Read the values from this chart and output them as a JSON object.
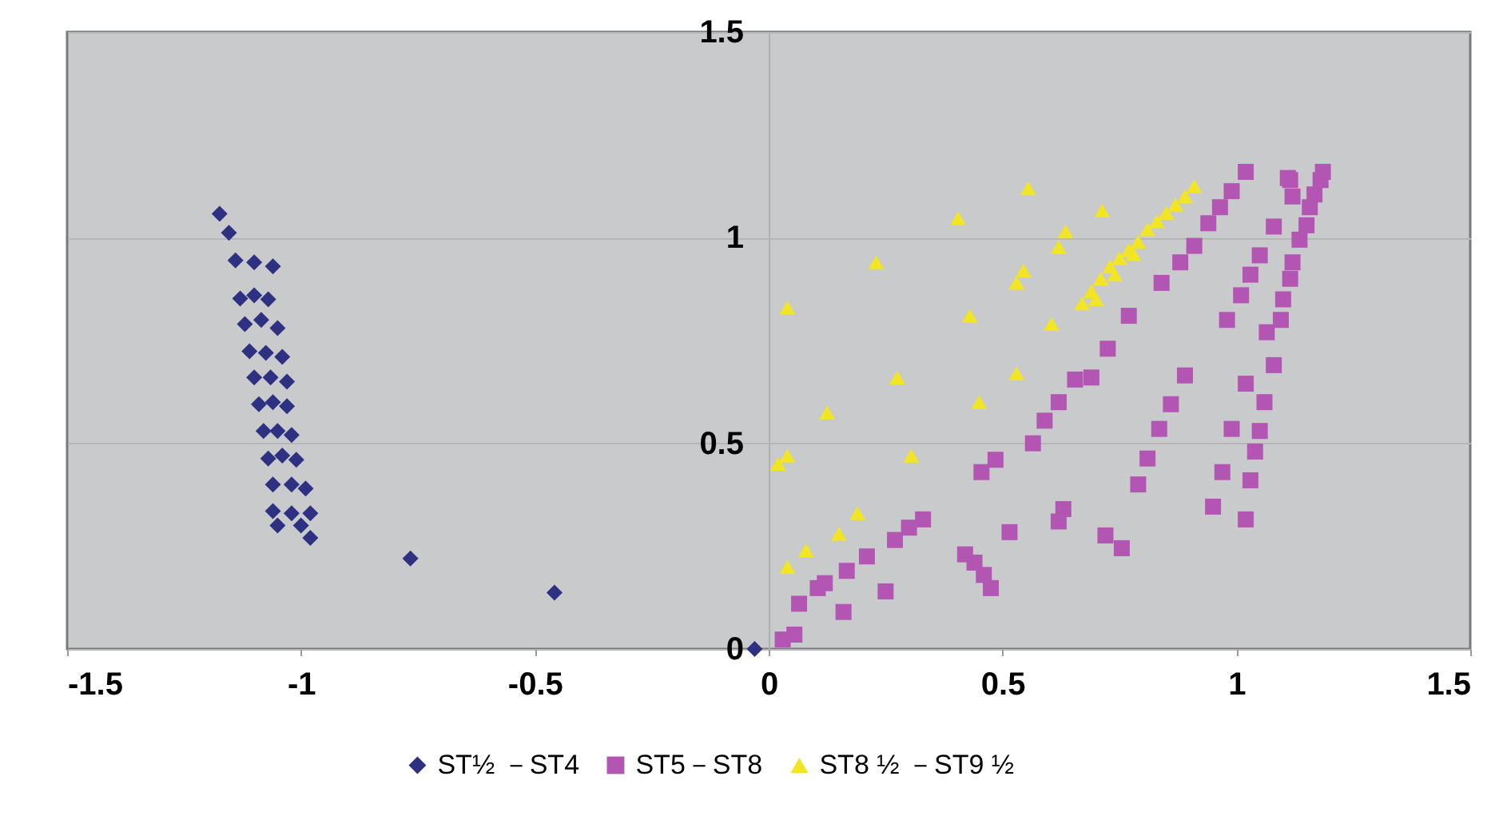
{
  "chart_data": {
    "type": "scatter",
    "grid": "y",
    "legend": "bottom",
    "xlim": [
      -1.5,
      1.5
    ],
    "ylim": [
      0,
      1.5
    ],
    "xticks": [
      -1.5,
      -1,
      -0.5,
      0,
      0.5,
      1,
      1.5
    ],
    "yticks": [
      0,
      0.5,
      1,
      1.5
    ],
    "series": [
      {
        "name": "ST½ －ST4",
        "color": "#2e3182",
        "marker": "diamond",
        "x": [
          -1.174,
          -1.154,
          -1.14,
          -1.1,
          -1.06,
          -1.13,
          -1.1,
          -1.07,
          -1.12,
          -1.085,
          -1.05,
          -1.11,
          -1.075,
          -1.04,
          -1.1,
          -1.065,
          -1.03,
          -1.09,
          -1.06,
          -1.03,
          -1.08,
          -1.05,
          -1.02,
          -1.07,
          -1.04,
          -1.01,
          -1.06,
          -1.02,
          -0.99,
          -1.06,
          -1.02,
          -0.98,
          -1.05,
          -1.0,
          -0.98,
          -0.766,
          -0.458,
          -0.03
        ],
        "values": [
          1.058,
          1.012,
          0.945,
          0.94,
          0.93,
          0.852,
          0.86,
          0.85,
          0.79,
          0.8,
          0.78,
          0.724,
          0.72,
          0.71,
          0.66,
          0.66,
          0.65,
          0.595,
          0.6,
          0.59,
          0.53,
          0.53,
          0.52,
          0.463,
          0.47,
          0.46,
          0.4,
          0.4,
          0.39,
          0.335,
          0.33,
          0.33,
          0.3,
          0.3,
          0.27,
          0.22,
          0.137,
          0.0
        ]
      },
      {
        "name": "ST5－ST8",
        "color": "#b356b3",
        "marker": "square",
        "x": [
          0.03,
          0.055,
          0.065,
          0.105,
          0.12,
          0.16,
          0.167,
          0.21,
          0.25,
          0.27,
          0.3,
          0.33,
          0.42,
          0.44,
          0.46,
          0.475,
          0.515,
          0.455,
          0.485,
          0.565,
          0.59,
          0.62,
          0.655,
          0.69,
          0.725,
          0.77,
          0.84,
          0.88,
          0.91,
          0.94,
          0.965,
          0.99,
          1.02,
          0.63,
          0.62,
          0.72,
          0.755,
          0.79,
          0.81,
          0.835,
          0.86,
          0.89,
          0.98,
          1.01,
          1.03,
          1.05,
          1.08,
          1.115,
          0.95,
          0.97,
          0.99,
          1.02,
          1.03,
          1.04,
          1.05,
          1.02,
          1.06,
          1.08,
          1.065,
          1.095,
          1.1,
          1.115,
          1.12,
          1.135,
          1.15,
          1.157,
          1.167,
          1.12,
          1.18,
          1.185,
          1.11
        ],
        "values": [
          0.023,
          0.035,
          0.11,
          0.148,
          0.16,
          0.09,
          0.19,
          0.225,
          0.14,
          0.265,
          0.295,
          0.315,
          0.23,
          0.21,
          0.18,
          0.148,
          0.284,
          0.43,
          0.46,
          0.5,
          0.555,
          0.6,
          0.655,
          0.66,
          0.73,
          0.81,
          0.89,
          0.94,
          0.98,
          1.035,
          1.074,
          1.113,
          1.16,
          0.34,
          0.31,
          0.276,
          0.245,
          0.4,
          0.463,
          0.535,
          0.595,
          0.665,
          0.8,
          0.86,
          0.91,
          0.957,
          1.027,
          1.14,
          0.346,
          0.43,
          0.535,
          0.315,
          0.41,
          0.48,
          0.53,
          0.645,
          0.6,
          0.69,
          0.77,
          0.8,
          0.85,
          0.9,
          0.94,
          0.995,
          1.03,
          1.074,
          1.105,
          1.1,
          1.14,
          1.16,
          1.145
        ]
      },
      {
        "name": "ST8 ½ －ST9 ½",
        "color": "#f2e524",
        "marker": "triangle",
        "x": [
          0.04,
          0.23,
          0.405,
          0.555,
          0.545,
          0.53,
          0.43,
          0.275,
          0.125,
          0.53,
          0.45,
          0.305,
          0.02,
          0.04,
          0.19,
          0.15,
          0.08,
          0.04,
          0.713,
          0.635,
          0.62,
          0.605,
          0.67,
          0.69,
          0.71,
          0.73,
          0.75,
          0.77,
          0.79,
          0.81,
          0.83,
          0.85,
          0.87,
          0.89,
          0.91,
          0.7,
          0.74,
          0.78
        ],
        "values": [
          0.83,
          0.94,
          1.047,
          1.12,
          0.92,
          0.89,
          0.81,
          0.66,
          0.575,
          0.67,
          0.6,
          0.47,
          0.45,
          0.47,
          0.33,
          0.28,
          0.24,
          0.2,
          1.066,
          1.015,
          0.977,
          0.79,
          0.84,
          0.87,
          0.9,
          0.93,
          0.95,
          0.97,
          0.99,
          1.02,
          1.04,
          1.06,
          1.08,
          1.1,
          1.125,
          0.85,
          0.91,
          0.96
        ]
      }
    ]
  }
}
